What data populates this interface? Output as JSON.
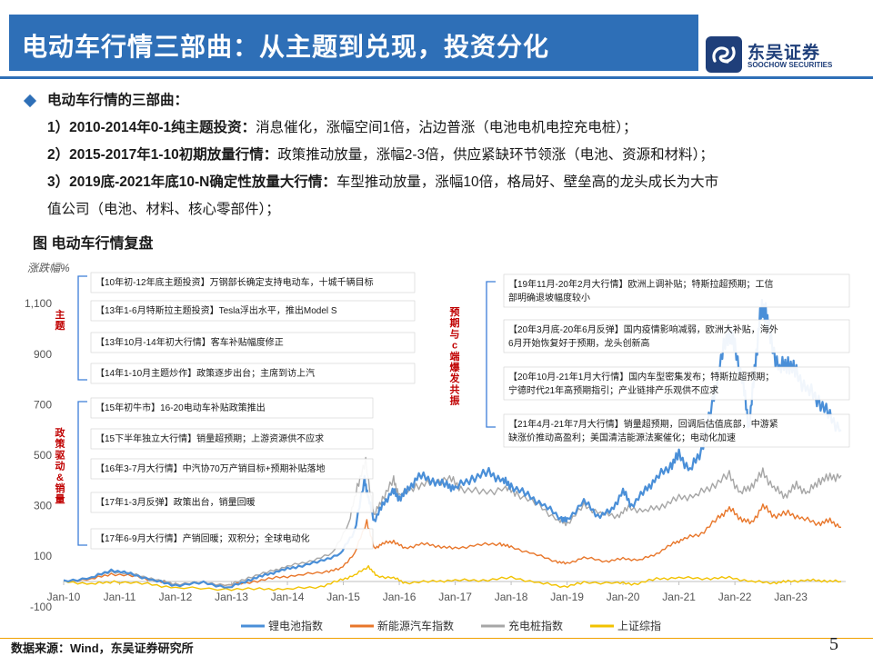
{
  "header": {
    "title": "电动车行情三部曲：从主题到兑现，投资分化",
    "logo_cn": "东吴证券",
    "logo_en": "SOOCHOW SECURITIES",
    "brand_color": "#2e6fb7"
  },
  "bullets": {
    "heading": "电动车行情的三部曲：",
    "items": [
      {
        "bold": "1）2010-2014年0-1纯主题投资：",
        "text": "消息催化，涨幅空间1倍，沾边普涨（电池电机电控充电桩）；"
      },
      {
        "bold": "2）2015-2017年1-10初期放量行情：",
        "text": "政策推动放量，涨幅2-3倍，供应紧缺环节领涨（电池、资源和材料）；"
      },
      {
        "bold": "3）2019底-2021年底10-N确定性放量大行情：",
        "text": "车型推动放量，涨幅10倍，格局好、壁垒高的龙头成长为大市",
        "cont": "值公司（电池、材料、核心零部件）；"
      }
    ]
  },
  "figure_title": "图 电动车行情复盘",
  "footer": {
    "source": "数据来源：Wind，东吴证券研究所",
    "page": "5"
  },
  "chart_data": {
    "type": "line",
    "ylabel": "涨跌幅%",
    "ylim": [
      -100,
      1200
    ],
    "yticks": [
      -100,
      100,
      300,
      500,
      700,
      900,
      1100
    ],
    "x_range": [
      "2010-01",
      "2023-11"
    ],
    "xticks": [
      "Jan-10",
      "Jan-11",
      "Jan-12",
      "Jan-13",
      "Jan-14",
      "Jan-15",
      "Jan-16",
      "Jan-17",
      "Jan-18",
      "Jan-19",
      "Jan-20",
      "Jan-21",
      "Jan-22",
      "Jan-23"
    ],
    "series": [
      {
        "name": "锂电池指数",
        "color": "#4a8fd8",
        "width": 2.2,
        "points": [
          [
            2010.0,
            0
          ],
          [
            2010.5,
            15
          ],
          [
            2010.85,
            45
          ],
          [
            2011.2,
            30
          ],
          [
            2011.6,
            5
          ],
          [
            2012.0,
            -15
          ],
          [
            2012.5,
            -5
          ],
          [
            2012.95,
            -25
          ],
          [
            2013.3,
            5
          ],
          [
            2013.6,
            25
          ],
          [
            2013.9,
            45
          ],
          [
            2014.2,
            60
          ],
          [
            2014.6,
            80
          ],
          [
            2014.95,
            110
          ],
          [
            2015.2,
            200
          ],
          [
            2015.38,
            400
          ],
          [
            2015.45,
            330
          ],
          [
            2015.55,
            240
          ],
          [
            2015.7,
            300
          ],
          [
            2015.88,
            360
          ],
          [
            2016.0,
            330
          ],
          [
            2016.15,
            360
          ],
          [
            2016.35,
            420
          ],
          [
            2016.6,
            400
          ],
          [
            2016.85,
            380
          ],
          [
            2017.0,
            370
          ],
          [
            2017.3,
            410
          ],
          [
            2017.6,
            430
          ],
          [
            2017.85,
            400
          ],
          [
            2018.0,
            380
          ],
          [
            2018.3,
            340
          ],
          [
            2018.6,
            300
          ],
          [
            2018.9,
            250
          ],
          [
            2019.0,
            240
          ],
          [
            2019.3,
            320
          ],
          [
            2019.55,
            260
          ],
          [
            2019.8,
            280
          ],
          [
            2020.0,
            360
          ],
          [
            2020.15,
            300
          ],
          [
            2020.4,
            360
          ],
          [
            2020.6,
            410
          ],
          [
            2020.85,
            460
          ],
          [
            2021.0,
            500
          ],
          [
            2021.2,
            440
          ],
          [
            2021.4,
            520
          ],
          [
            2021.6,
            700
          ],
          [
            2021.75,
            880
          ],
          [
            2021.9,
            1000
          ],
          [
            2022.0,
            920
          ],
          [
            2022.15,
            780
          ],
          [
            2022.25,
            610
          ],
          [
            2022.35,
            820
          ],
          [
            2022.45,
            1060
          ],
          [
            2022.55,
            1080
          ],
          [
            2022.65,
            940
          ],
          [
            2022.8,
            840
          ],
          [
            2022.95,
            870
          ],
          [
            2023.1,
            820
          ],
          [
            2023.3,
            760
          ],
          [
            2023.5,
            720
          ],
          [
            2023.7,
            650
          ],
          [
            2023.9,
            600
          ]
        ]
      },
      {
        "name": "新能源汽车指数",
        "color": "#e8762a",
        "width": 1.4,
        "points": [
          [
            2010.0,
            0
          ],
          [
            2010.5,
            10
          ],
          [
            2010.85,
            30
          ],
          [
            2011.3,
            20
          ],
          [
            2011.7,
            0
          ],
          [
            2012.0,
            -10
          ],
          [
            2012.5,
            -5
          ],
          [
            2012.95,
            -15
          ],
          [
            2013.4,
            0
          ],
          [
            2013.8,
            15
          ],
          [
            2014.2,
            25
          ],
          [
            2014.7,
            40
          ],
          [
            2014.95,
            50
          ],
          [
            2015.2,
            110
          ],
          [
            2015.42,
            240
          ],
          [
            2015.55,
            130
          ],
          [
            2015.7,
            150
          ],
          [
            2015.9,
            160
          ],
          [
            2016.1,
            130
          ],
          [
            2016.4,
            150
          ],
          [
            2016.7,
            140
          ],
          [
            2017.0,
            130
          ],
          [
            2017.4,
            145
          ],
          [
            2017.8,
            150
          ],
          [
            2018.0,
            135
          ],
          [
            2018.4,
            110
          ],
          [
            2018.8,
            80
          ],
          [
            2019.0,
            70
          ],
          [
            2019.3,
            95
          ],
          [
            2019.7,
            80
          ],
          [
            2020.0,
            90
          ],
          [
            2020.3,
            85
          ],
          [
            2020.6,
            110
          ],
          [
            2020.9,
            150
          ],
          [
            2021.1,
            170
          ],
          [
            2021.4,
            190
          ],
          [
            2021.7,
            250
          ],
          [
            2021.9,
            290
          ],
          [
            2022.1,
            250
          ],
          [
            2022.3,
            230
          ],
          [
            2022.5,
            300
          ],
          [
            2022.7,
            260
          ],
          [
            2022.95,
            270
          ],
          [
            2023.2,
            250
          ],
          [
            2023.5,
            230
          ],
          [
            2023.7,
            240
          ],
          [
            2023.9,
            215
          ]
        ]
      },
      {
        "name": "充电桩指数",
        "color": "#a6a6a6",
        "width": 1.4,
        "points": [
          [
            2010.0,
            0
          ],
          [
            2010.5,
            15
          ],
          [
            2010.85,
            40
          ],
          [
            2011.3,
            25
          ],
          [
            2011.7,
            5
          ],
          [
            2012.0,
            -10
          ],
          [
            2012.5,
            -5
          ],
          [
            2012.95,
            -15
          ],
          [
            2013.3,
            15
          ],
          [
            2013.7,
            40
          ],
          [
            2014.0,
            60
          ],
          [
            2014.4,
            80
          ],
          [
            2014.8,
            110
          ],
          [
            2015.1,
            230
          ],
          [
            2015.25,
            380
          ],
          [
            2015.4,
            470
          ],
          [
            2015.55,
            260
          ],
          [
            2015.7,
            330
          ],
          [
            2015.9,
            400
          ],
          [
            2016.0,
            340
          ],
          [
            2016.3,
            380
          ],
          [
            2016.6,
            390
          ],
          [
            2016.9,
            410
          ],
          [
            2017.1,
            370
          ],
          [
            2017.5,
            350
          ],
          [
            2017.9,
            370
          ],
          [
            2018.1,
            350
          ],
          [
            2018.5,
            300
          ],
          [
            2018.85,
            240
          ],
          [
            2019.0,
            230
          ],
          [
            2019.3,
            300
          ],
          [
            2019.6,
            270
          ],
          [
            2019.9,
            260
          ],
          [
            2020.1,
            290
          ],
          [
            2020.4,
            280
          ],
          [
            2020.7,
            300
          ],
          [
            2021.0,
            330
          ],
          [
            2021.3,
            340
          ],
          [
            2021.6,
            380
          ],
          [
            2021.9,
            420
          ],
          [
            2022.1,
            350
          ],
          [
            2022.3,
            380
          ],
          [
            2022.5,
            430
          ],
          [
            2022.7,
            370
          ],
          [
            2022.9,
            340
          ],
          [
            2023.1,
            380
          ],
          [
            2023.3,
            350
          ],
          [
            2023.5,
            400
          ],
          [
            2023.7,
            410
          ],
          [
            2023.9,
            420
          ]
        ]
      },
      {
        "name": "上证综指",
        "color": "#f2c200",
        "width": 1.4,
        "points": [
          [
            2010.0,
            0
          ],
          [
            2010.5,
            -10
          ],
          [
            2010.9,
            0
          ],
          [
            2011.5,
            -10
          ],
          [
            2012.0,
            -25
          ],
          [
            2012.9,
            -30
          ],
          [
            2013.5,
            -30
          ],
          [
            2014.0,
            -30
          ],
          [
            2014.6,
            -20
          ],
          [
            2014.95,
            5
          ],
          [
            2015.2,
            25
          ],
          [
            2015.45,
            60
          ],
          [
            2015.6,
            20
          ],
          [
            2015.9,
            15
          ],
          [
            2016.1,
            -5
          ],
          [
            2016.6,
            0
          ],
          [
            2017.0,
            5
          ],
          [
            2017.5,
            5
          ],
          [
            2018.0,
            15
          ],
          [
            2018.5,
            -5
          ],
          [
            2018.95,
            -20
          ],
          [
            2019.3,
            -5
          ],
          [
            2019.9,
            -5
          ],
          [
            2020.2,
            -10
          ],
          [
            2020.6,
            10
          ],
          [
            2021.0,
            15
          ],
          [
            2021.5,
            12
          ],
          [
            2021.9,
            15
          ],
          [
            2022.3,
            0
          ],
          [
            2022.7,
            -5
          ],
          [
            2022.95,
            0
          ],
          [
            2023.3,
            5
          ],
          [
            2023.6,
            3
          ],
          [
            2023.9,
            0
          ]
        ]
      }
    ],
    "annotations_left": [
      {
        "text": "【10年初-12年底主题投资】万钢部长确定支持电动车，十城千辆目标"
      },
      {
        "text": "【13年1-6月特斯拉主题投资】Tesla浮出水平，推出Model S"
      },
      {
        "text": "【13年10月-14年初大行情】客车补贴幅度修正"
      },
      {
        "text": "【14年1-10月主题炒作】政策逐步出台；主席到访上汽"
      },
      {
        "text": "【15年初牛市】16-20电动车补贴政策推出"
      },
      {
        "text": "【15下半年独立大行情】销量超预期；上游资源供不应求"
      },
      {
        "text": "【16年3-7月大行情】中汽协70万产销目标+预期补贴落地"
      },
      {
        "text": "【17年1-3月反弹】政策出台，销量回暖"
      },
      {
        "text": "【17年6-9月大行情】产销回暖；双积分；全球电动化"
      }
    ],
    "annotations_right": [
      {
        "text": "【19年11月-20年2月大行情】欧洲上调补贴；特斯拉超预期；工信部明确退坡幅度较小"
      },
      {
        "text": "【20年3月底-20年6月反弹】国内疫情影响减弱，欧洲大补贴，海外6月开始恢复好于预期，龙头创新高"
      },
      {
        "text": "【20年10月-21年1月大行情】国内车型密集发布；特斯拉超预期；宁德时代21年高预期指引；产业链排产乐观供不应求"
      },
      {
        "text": "【21年4月-21年7月大行情】销量超预期，回调后估值底部，中游紧缺涨价推动高盈利；美国清洁能源法案催化；电动化加速"
      }
    ],
    "group_labels": {
      "theme": "主题",
      "policy": "政策驱动&销量",
      "expect": "预期与c端爆发共振"
    }
  }
}
